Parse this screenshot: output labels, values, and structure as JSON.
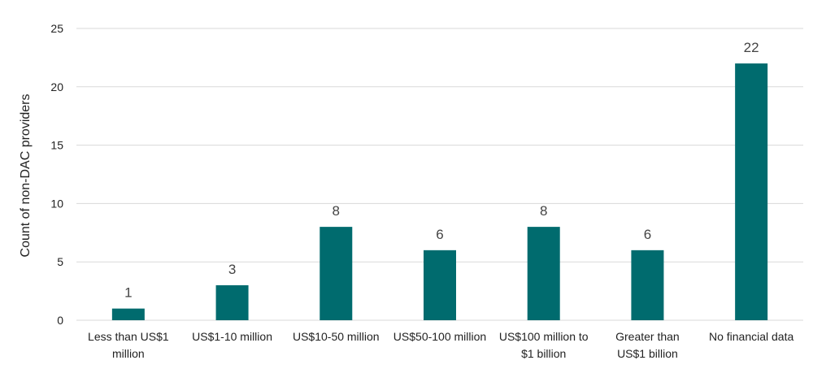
{
  "chart_data": {
    "type": "bar",
    "title": "",
    "xlabel": "",
    "ylabel": "Count of non-DAC providers",
    "ylim": [
      0,
      25
    ],
    "yticks": [
      0,
      5,
      10,
      15,
      20,
      25
    ],
    "grid": true,
    "categories": [
      [
        "Less than US$1",
        "million"
      ],
      [
        "US$1-10 million"
      ],
      [
        "US$10-50 million"
      ],
      [
        "US$50-100 million"
      ],
      [
        "US$100 million to",
        "$1 billion"
      ],
      [
        "Greater than",
        "US$1 billion"
      ],
      [
        "No financial data"
      ]
    ],
    "values": [
      1,
      3,
      8,
      6,
      8,
      6,
      22
    ],
    "data_labels": [
      "1",
      "3",
      "8",
      "6",
      "8",
      "6",
      "22"
    ],
    "bar_color": "#006b6e"
  }
}
